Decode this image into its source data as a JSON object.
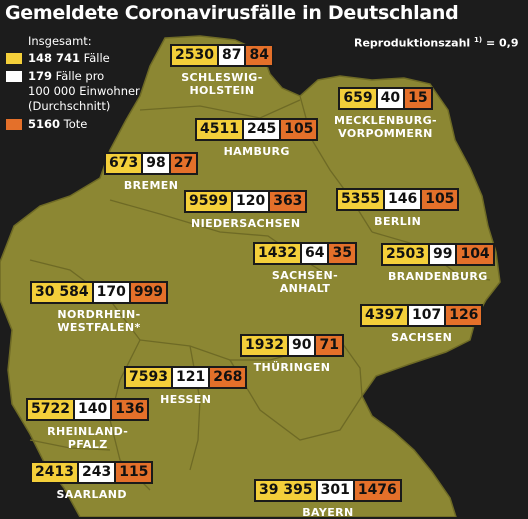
{
  "title": "Gemeldete Coronavirusfälle in Deutschland",
  "reproduction": {
    "label": "Reproduktionszahl",
    "footnote": "1)",
    "value": "= 0,9"
  },
  "legend": {
    "heading": "Insgesamt:",
    "cases": {
      "value": "148 741",
      "label": "Fälle",
      "color": "#f4cf3a"
    },
    "per100k": {
      "value": "179",
      "label_lines": [
        "Fälle pro",
        "100 000 Einwohner",
        "(Durchschnitt)"
      ],
      "color": "#ffffff"
    },
    "deaths": {
      "value": "5160",
      "label": "Tote",
      "color": "#e4702a"
    }
  },
  "colors": {
    "land": "#8c8733",
    "border": "#6e6a25",
    "background": "#1c1c1c",
    "cases": "#f4cf3a",
    "per100k": "#ffffff",
    "deaths": "#e4702a"
  },
  "states": [
    {
      "key": "sh",
      "name_lines": [
        "SCHLESWIG-",
        "HOLSTEIN"
      ],
      "cases": "2530",
      "per100k": "87",
      "deaths": "84"
    },
    {
      "key": "mv",
      "name_lines": [
        "MECKLENBURG-",
        "VORPOMMERN"
      ],
      "cases": "659",
      "per100k": "40",
      "deaths": "15"
    },
    {
      "key": "hh",
      "name_lines": [
        "HAMBURG"
      ],
      "cases": "4511",
      "per100k": "245",
      "deaths": "105"
    },
    {
      "key": "hb",
      "name_lines": [
        "BREMEN"
      ],
      "cases": "673",
      "per100k": "98",
      "deaths": "27"
    },
    {
      "key": "ni",
      "name_lines": [
        "NIEDERSACHSEN"
      ],
      "cases": "9599",
      "per100k": "120",
      "deaths": "363"
    },
    {
      "key": "be",
      "name_lines": [
        "BERLIN"
      ],
      "cases": "5355",
      "per100k": "146",
      "deaths": "105"
    },
    {
      "key": "st",
      "name_lines": [
        "SACHSEN-",
        "ANHALT"
      ],
      "cases": "1432",
      "per100k": "64",
      "deaths": "35"
    },
    {
      "key": "bb",
      "name_lines": [
        "BRANDENBURG"
      ],
      "cases": "2503",
      "per100k": "99",
      "deaths": "104"
    },
    {
      "key": "nw",
      "name_lines": [
        "NORDRHEIN-",
        "WESTFALEN*"
      ],
      "cases": "30 584",
      "per100k": "170",
      "deaths": "999"
    },
    {
      "key": "sn",
      "name_lines": [
        "SACHSEN"
      ],
      "cases": "4397",
      "per100k": "107",
      "deaths": "126"
    },
    {
      "key": "th",
      "name_lines": [
        "THÜRINGEN"
      ],
      "cases": "1932",
      "per100k": "90",
      "deaths": "71"
    },
    {
      "key": "he",
      "name_lines": [
        "HESSEN"
      ],
      "cases": "7593",
      "per100k": "121",
      "deaths": "268"
    },
    {
      "key": "rp",
      "name_lines": [
        "RHEINLAND-",
        "PFALZ"
      ],
      "cases": "5722",
      "per100k": "140",
      "deaths": "136"
    },
    {
      "key": "sl",
      "name_lines": [
        "SAARLAND"
      ],
      "cases": "2413",
      "per100k": "243",
      "deaths": "115"
    },
    {
      "key": "by",
      "name_lines": [
        "BAYERN"
      ],
      "cases": "39 395",
      "per100k": "301",
      "deaths": "1476"
    }
  ]
}
